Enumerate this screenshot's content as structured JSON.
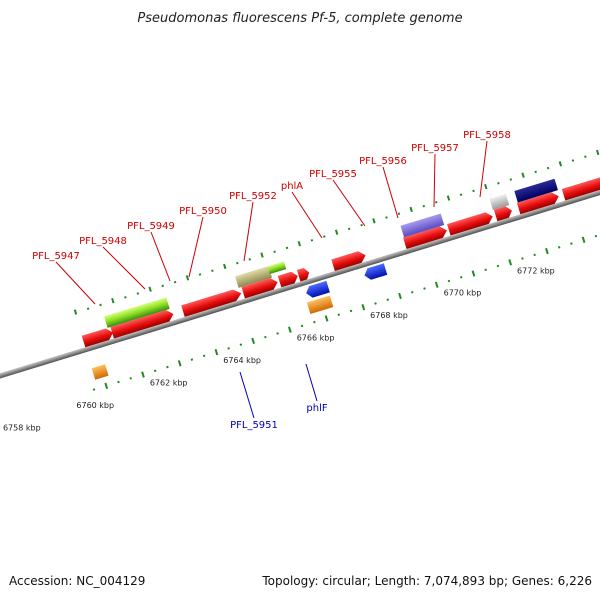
{
  "title": "Pseudomonas fluorescens Pf-5, complete genome",
  "footer": {
    "accession": "Accession: NC_004129",
    "summary": "Topology: circular; Length: 7,074,893 bp; Genes: 6,226"
  },
  "colors": {
    "forward_gene": "#ee1111",
    "reverse_gene": "#1133ee",
    "label_forward": "#cc0000",
    "label_reverse": "#0000bb",
    "backbone": "#888888",
    "tick": "#228822"
  },
  "ruler_labels": [
    "6758 kbp",
    "6760 kbp",
    "6762 kbp",
    "6764 kbp",
    "6766 kbp",
    "6768 kbp",
    "6770 kbp",
    "6772 kbp"
  ],
  "gene_labels_top": [
    "PFL_5947",
    "PFL_5948",
    "PFL_5949",
    "PFL_5950",
    "PFL_5952",
    "phlA",
    "PFL_5955",
    "PFL_5956",
    "PFL_5957",
    "PFL_5958"
  ],
  "gene_labels_bottom": [
    "PFL_5951",
    "phlF"
  ]
}
